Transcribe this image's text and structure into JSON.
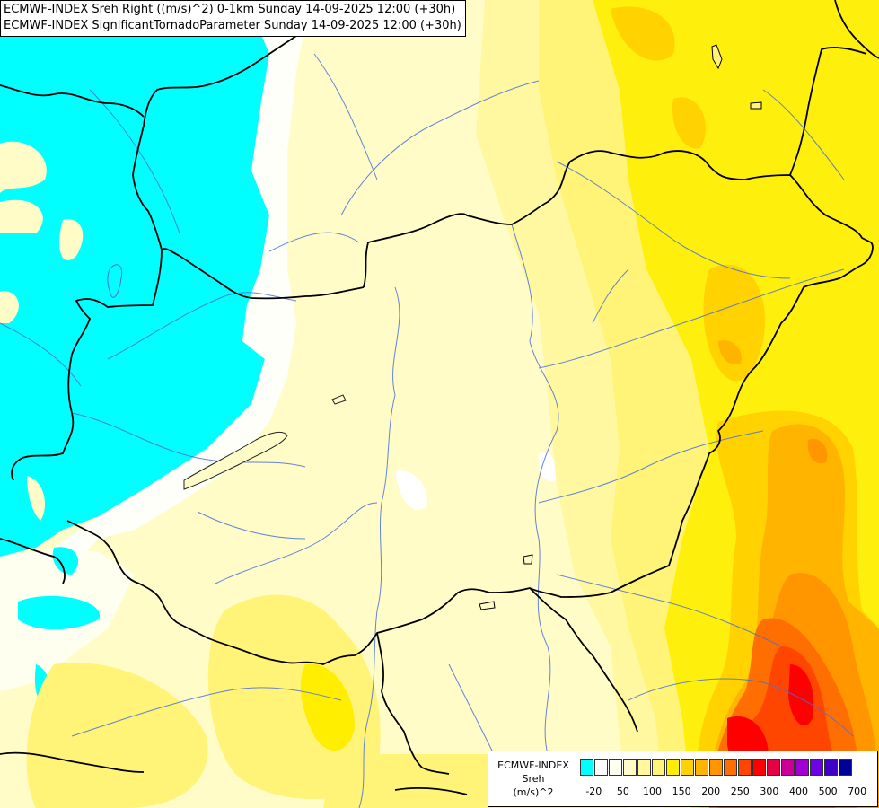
{
  "title_lines": [
    "ECMWF-INDEX Sreh Right ((m/s)^2) 0-1km Sunday 14-09-2025 12:00 (+30h)",
    "ECMWF-INDEX SignificantTornadoParameter Sunday 14-09-2025 12:00 (+30h)"
  ],
  "legend": {
    "name_lines": [
      "ECMWF-INDEX",
      "Sreh",
      "(m/s)^2"
    ],
    "colors": [
      "#00ffff",
      "#ffffff",
      "#fffff0",
      "#fffcc8",
      "#fff8a0",
      "#fff478",
      "#ffee00",
      "#ffd200",
      "#ffb400",
      "#ff9600",
      "#ff6e00",
      "#ff4600",
      "#ff0000",
      "#e60046",
      "#c80096",
      "#a000d2",
      "#7000e6",
      "#4000c8",
      "#000096"
    ],
    "tick_labels": [
      "-20",
      "50",
      "100",
      "150",
      "200",
      "250",
      "300",
      "400",
      "500",
      "700"
    ]
  }
}
